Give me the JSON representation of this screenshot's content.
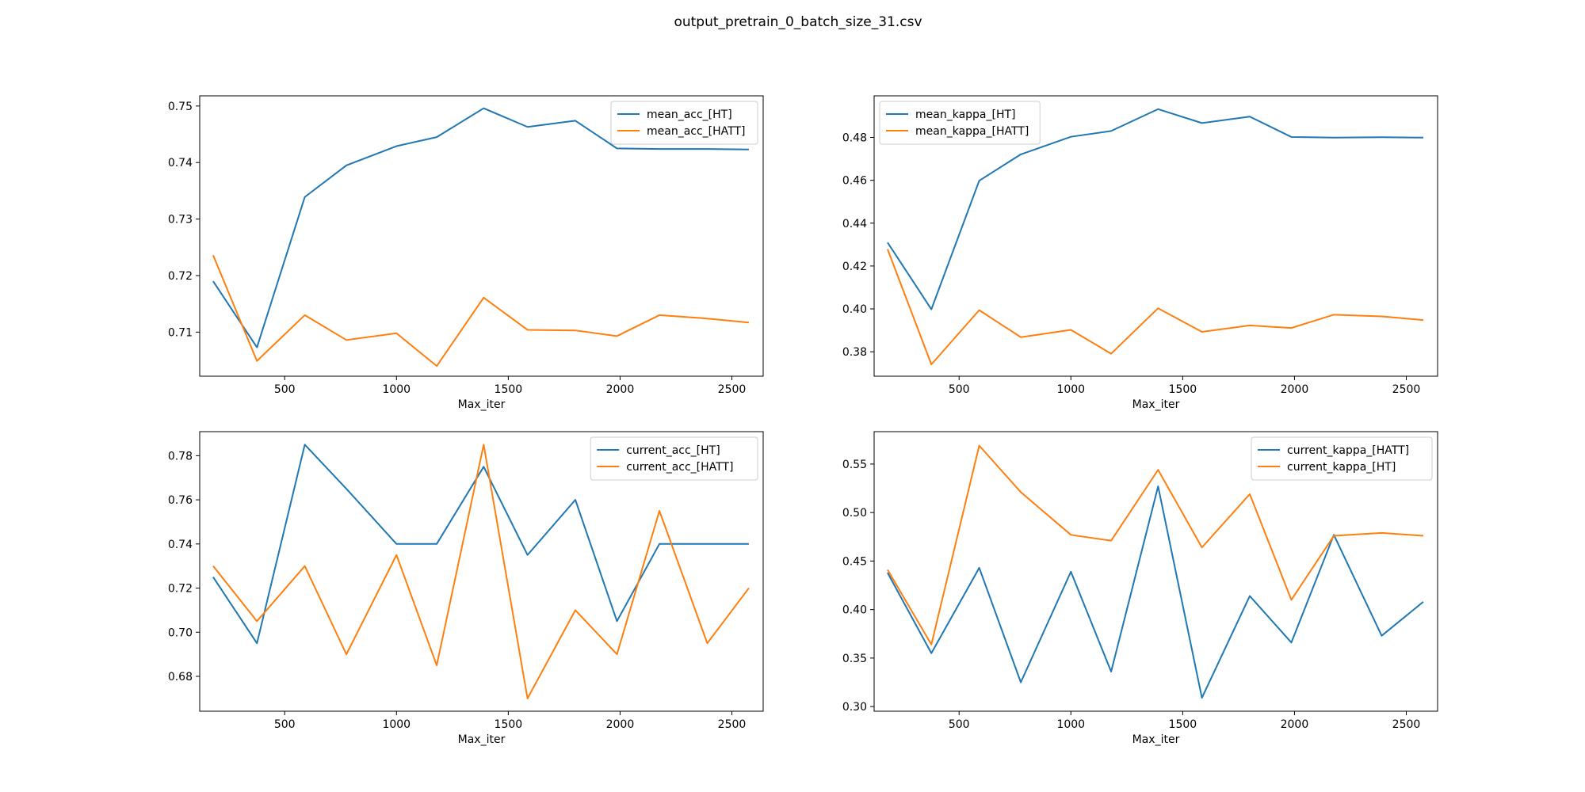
{
  "figure": {
    "suptitle": "output_pretrain_0_batch_size_31.csv"
  },
  "colors": {
    "blue": "#1f77b4",
    "orange": "#ff7f0e"
  },
  "chart_data": [
    {
      "type": "line",
      "xlabel": "Max_iter",
      "ylabel": "",
      "xlim": [
        120,
        2640
      ],
      "ylim": [
        0.7022,
        0.7518
      ],
      "xticks": [
        500,
        1000,
        1500,
        2000,
        2500
      ],
      "yticks": [
        0.71,
        0.72,
        0.73,
        0.74,
        0.75
      ],
      "ytick_labels": [
        "0.71",
        "0.72",
        "0.73",
        "0.74",
        "0.75"
      ],
      "legend_loc": "upper right",
      "grid": false,
      "x": [
        180,
        376,
        590,
        776,
        1000,
        1180,
        1390,
        1586,
        1800,
        1986,
        2176,
        2390,
        2576
      ],
      "series": [
        {
          "name": "mean_acc_[HT]",
          "color": "#1f77b4",
          "values": [
            0.719,
            0.7073,
            0.7339,
            0.7395,
            0.7429,
            0.7445,
            0.7496,
            0.7463,
            0.7474,
            0.7425,
            0.7424,
            0.7424,
            0.7423
          ]
        },
        {
          "name": "mean_acc_[HATT]",
          "color": "#ff7f0e",
          "values": [
            0.7236,
            0.7049,
            0.713,
            0.7086,
            0.7098,
            0.704,
            0.7161,
            0.7104,
            0.7103,
            0.7093,
            0.713,
            0.7124,
            0.7117
          ]
        }
      ]
    },
    {
      "type": "line",
      "xlabel": "Max_iter",
      "ylabel": "",
      "xlim": [
        120,
        2640
      ],
      "ylim": [
        0.3686,
        0.4994
      ],
      "xticks": [
        500,
        1000,
        1500,
        2000,
        2500
      ],
      "yticks": [
        0.38,
        0.4,
        0.42,
        0.44,
        0.46,
        0.48
      ],
      "ytick_labels": [
        "0.38",
        "0.40",
        "0.42",
        "0.44",
        "0.46",
        "0.48"
      ],
      "legend_loc": "upper left",
      "grid": false,
      "x": [
        180,
        376,
        590,
        776,
        1000,
        1180,
        1390,
        1586,
        1800,
        1986,
        2176,
        2390,
        2576
      ],
      "series": [
        {
          "name": "mean_kappa_[HT]",
          "color": "#1f77b4",
          "values": [
            0.431,
            0.3998,
            0.4598,
            0.4721,
            0.4803,
            0.483,
            0.4932,
            0.4867,
            0.4897,
            0.4802,
            0.4799,
            0.4801,
            0.4799
          ]
        },
        {
          "name": "mean_kappa_[HATT]",
          "color": "#ff7f0e",
          "values": [
            0.4279,
            0.3741,
            0.3994,
            0.3868,
            0.3902,
            0.3791,
            0.4003,
            0.3893,
            0.3923,
            0.3911,
            0.3973,
            0.3965,
            0.3948
          ]
        }
      ]
    },
    {
      "type": "line",
      "xlabel": "Max_iter",
      "ylabel": "",
      "xlim": [
        120,
        2640
      ],
      "ylim": [
        0.6642,
        0.7909
      ],
      "xticks": [
        500,
        1000,
        1500,
        2000,
        2500
      ],
      "yticks": [
        0.68,
        0.7,
        0.72,
        0.74,
        0.76,
        0.78
      ],
      "ytick_labels": [
        "0.68",
        "0.70",
        "0.72",
        "0.74",
        "0.76",
        "0.78"
      ],
      "legend_loc": "upper right",
      "grid": false,
      "x": [
        180,
        376,
        590,
        776,
        1000,
        1180,
        1390,
        1586,
        1800,
        1986,
        2176,
        2390,
        2576
      ],
      "series": [
        {
          "name": "current_acc_[HT]",
          "color": "#1f77b4",
          "values": [
            0.725,
            0.695,
            0.785,
            0.765,
            0.74,
            0.74,
            0.775,
            0.735,
            0.76,
            0.705,
            0.74,
            0.74,
            0.74
          ]
        },
        {
          "name": "current_acc_[HATT]",
          "color": "#ff7f0e",
          "values": [
            0.73,
            0.705,
            0.73,
            0.69,
            0.735,
            0.685,
            0.785,
            0.67,
            0.71,
            0.69,
            0.755,
            0.695,
            0.72
          ]
        }
      ]
    },
    {
      "type": "line",
      "xlabel": "Max_iter",
      "ylabel": "",
      "xlim": [
        120,
        2640
      ],
      "ylim": [
        0.2952,
        0.5834
      ],
      "xticks": [
        500,
        1000,
        1500,
        2000,
        2500
      ],
      "yticks": [
        0.3,
        0.35,
        0.4,
        0.45,
        0.5,
        0.55
      ],
      "ytick_labels": [
        "0.30",
        "0.35",
        "0.40",
        "0.45",
        "0.50",
        "0.55"
      ],
      "legend_loc": "upper right",
      "grid": false,
      "x": [
        180,
        376,
        590,
        776,
        1000,
        1180,
        1390,
        1586,
        1800,
        1986,
        2176,
        2390,
        2576
      ],
      "series": [
        {
          "name": "current_kappa_[HATT]",
          "color": "#1f77b4",
          "values": [
            0.438,
            0.355,
            0.443,
            0.325,
            0.439,
            0.336,
            0.527,
            0.309,
            0.414,
            0.366,
            0.477,
            0.373,
            0.408
          ]
        },
        {
          "name": "current_kappa_[HT]",
          "color": "#ff7f0e",
          "values": [
            0.441,
            0.364,
            0.569,
            0.521,
            0.477,
            0.471,
            0.544,
            0.464,
            0.519,
            0.41,
            0.476,
            0.479,
            0.476
          ]
        }
      ]
    }
  ]
}
